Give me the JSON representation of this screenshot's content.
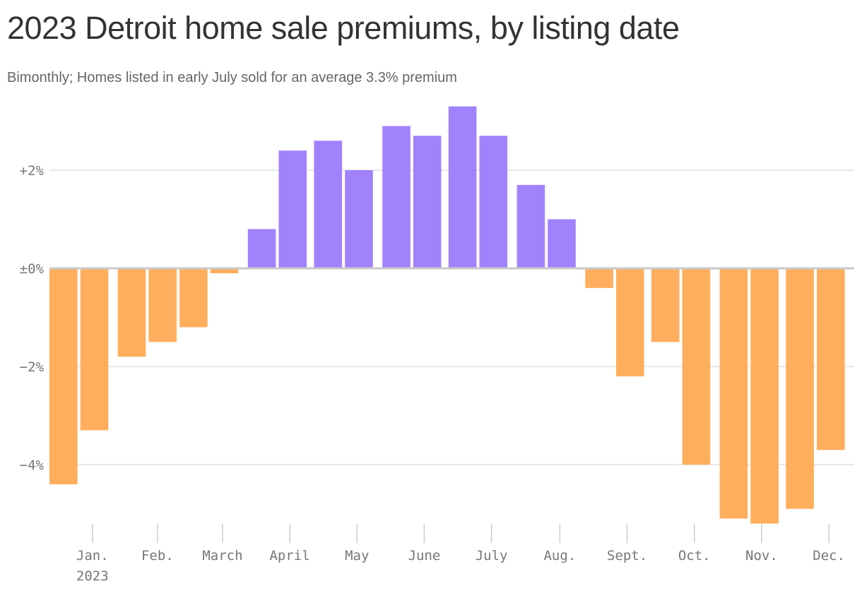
{
  "title": "2023 Detroit home sale premiums, by listing date",
  "subtitle": "Bimonthly; Homes listed in early July sold for an average 3.3% premium",
  "colors": {
    "positive": "#a182fd",
    "negative": "#ffae5d",
    "grid": "#e1e1e1",
    "zero_line": "#c9c9c9",
    "ticks": "#cccccc"
  },
  "chart_data": {
    "type": "bar",
    "title": "2023 Detroit home sale premiums, by listing date",
    "subtitle": "Bimonthly; Homes listed in early July sold for an average 3.3% premium",
    "unit": "%",
    "ylim": [
      -5.3,
      3.4
    ],
    "yticks": [
      {
        "value": 2,
        "label": "+2%"
      },
      {
        "value": 0,
        "label": "±0%"
      },
      {
        "value": -2,
        "label": "−2%"
      },
      {
        "value": -4,
        "label": "−4%"
      }
    ],
    "grid": true,
    "x": [
      "2023-01-01",
      "2023-01-15",
      "2023-02-01",
      "2023-02-15",
      "2023-03-01",
      "2023-03-15",
      "2023-04-01",
      "2023-04-15",
      "2023-05-01",
      "2023-05-15",
      "2023-06-01",
      "2023-06-15",
      "2023-07-01",
      "2023-07-15",
      "2023-08-01",
      "2023-08-15",
      "2023-09-01",
      "2023-09-15",
      "2023-10-01",
      "2023-10-15",
      "2023-11-01",
      "2023-11-15",
      "2023-12-01",
      "2023-12-15"
    ],
    "values": [
      -4.4,
      -3.3,
      -1.8,
      -1.5,
      -1.2,
      -0.1,
      0.8,
      2.4,
      2.6,
      2.0,
      2.9,
      2.7,
      3.3,
      2.7,
      1.7,
      1.0,
      -0.4,
      -2.2,
      -1.5,
      -4.0,
      -5.1,
      -5.2,
      -4.9,
      -3.7
    ],
    "month_labels": [
      "Jan.",
      "Feb.",
      "March",
      "April",
      "May",
      "June",
      "July",
      "Aug.",
      "Sept.",
      "Oct.",
      "Nov.",
      "Dec."
    ],
    "year_label": "2023"
  }
}
